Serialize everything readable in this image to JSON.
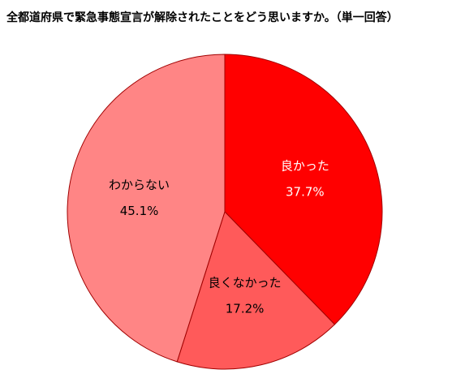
{
  "chart_data": {
    "type": "pie",
    "title": "全都道府県で緊急事態宣言が解除されたことをどう思いますか。（単一回答）",
    "categories": [
      "良かった",
      "良くなかった",
      "わからない"
    ],
    "values": [
      37.7,
      17.2,
      45.1
    ],
    "value_labels": [
      "37.7%",
      "17.2%",
      "45.1%"
    ],
    "colors": [
      "#ff0000",
      "#ff5a5a",
      "#ff8585"
    ],
    "label_colors": [
      "#ffffff",
      "#000000",
      "#000000"
    ]
  }
}
